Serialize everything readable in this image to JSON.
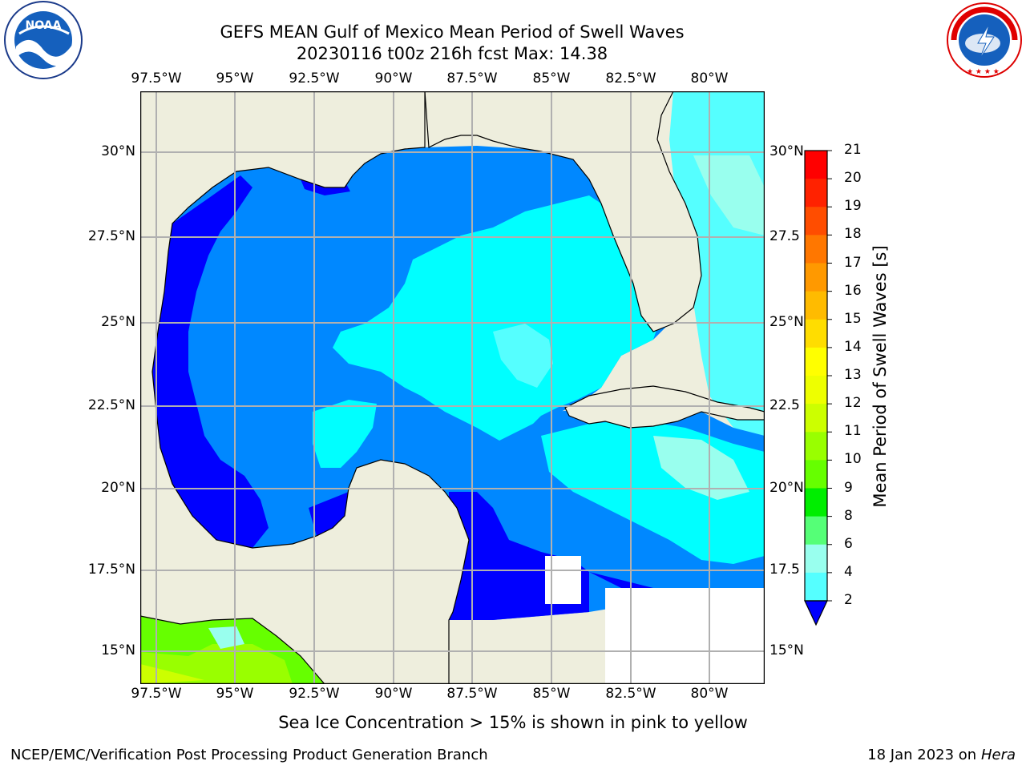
{
  "header": {
    "title_line1": "GEFS MEAN Gulf of Mexico Mean Period of Swell Waves",
    "title_line2": "20230116 t00z 216h fcst   Max: 14.38"
  },
  "logos": {
    "left": {
      "icon": "noaa-logo-icon",
      "text": "NOAA"
    },
    "right": {
      "icon": "nws-logo-icon",
      "text": "NATIONAL WEATHER SERVICE"
    }
  },
  "map": {
    "lon_ticks": [
      "97.5°W",
      "95°W",
      "92.5°W",
      "90°W",
      "87.5°W",
      "85°W",
      "82.5°W",
      "80°W"
    ],
    "lat_ticks_left": [
      "30°N",
      "27.5°N",
      "25°N",
      "22.5°N",
      "20°N",
      "17.5°N",
      "15°N"
    ],
    "lat_ticks_right": [
      "30°N",
      "27.5",
      "25°N",
      "22.5",
      "20°N",
      "17.5",
      "15°N"
    ],
    "land_color": "#eeeedd",
    "grid_color": "#b0b0b0"
  },
  "colorbar": {
    "label": "Mean Period of Swell Waves [s]",
    "ticks": [
      "21",
      "20",
      "19",
      "18",
      "17",
      "16",
      "15",
      "14",
      "13",
      "12",
      "11",
      "10",
      "9",
      "8",
      "6",
      "4",
      "2"
    ],
    "colors": [
      "#ff0000",
      "#ff2200",
      "#ff4d00",
      "#ff7700",
      "#ff9900",
      "#ffbb00",
      "#ffdd00",
      "#ffff00",
      "#eeff00",
      "#ccff00",
      "#99ff00",
      "#66ff00",
      "#00ee00",
      "#55ff77",
      "#99ffee",
      "#55ffff",
      "#00ffff",
      "#0088ff"
    ],
    "extend_color": "#0000ff"
  },
  "caption": "Sea Ice Concentration > 15% is shown in pink to yellow",
  "footer": {
    "left": "NCEP/EMC/Verification Post Processing Product Generation Branch",
    "right_date": "18 Jan 2023 on ",
    "right_host": "Hera"
  }
}
